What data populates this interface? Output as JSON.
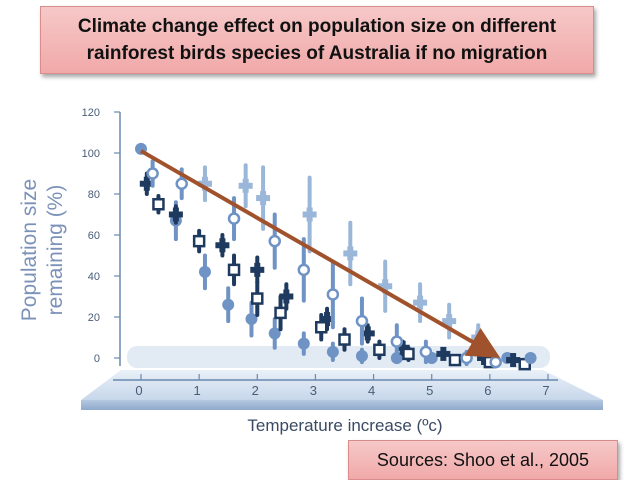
{
  "title": {
    "line1": "Climate change effect on population size on different",
    "line2": "rainforest birds species of Australia if no migration"
  },
  "source": "Sources: Shoo et al., 2005",
  "colors": {
    "dark": "#1f3a5f",
    "mid": "#6f93c4",
    "light": "#9ab6d9",
    "trend": "#a0522d",
    "axis": "#6a88b0"
  },
  "chart_data": {
    "type": "scatter",
    "xlabel": "Temperature increase (ºc)",
    "ylabel": [
      "Population size",
      "remaining (%)"
    ],
    "xlim": [
      0,
      7
    ],
    "ylim": [
      0,
      120
    ],
    "xticks": [
      0,
      1,
      2,
      3,
      4,
      5,
      6,
      7
    ],
    "yticks": [
      0,
      20,
      40,
      60,
      80,
      100,
      120
    ],
    "series": [
      {
        "name": "filled-circle",
        "marker": "circle",
        "shade": "mid",
        "points": [
          [
            0.6,
            67,
            9
          ],
          [
            1.1,
            42,
            8
          ],
          [
            1.5,
            26,
            8
          ],
          [
            1.9,
            19,
            8
          ],
          [
            2.3,
            12,
            7
          ],
          [
            2.8,
            7,
            5
          ],
          [
            3.3,
            3,
            4
          ],
          [
            3.8,
            1,
            3
          ],
          [
            4.4,
            0,
            2
          ],
          [
            5.0,
            0,
            2
          ],
          [
            5.6,
            0,
            1
          ],
          [
            6.3,
            0,
            1
          ]
        ]
      },
      {
        "name": "filled-cross",
        "marker": "cross",
        "shade": "dark",
        "points": [
          [
            0.1,
            85,
            5
          ],
          [
            0.6,
            70,
            4
          ],
          [
            1.4,
            55,
            5
          ],
          [
            2.0,
            43,
            6
          ],
          [
            2.5,
            30,
            6
          ],
          [
            3.2,
            19,
            5
          ],
          [
            3.9,
            12,
            4
          ],
          [
            4.5,
            5,
            3
          ],
          [
            5.2,
            2,
            2
          ],
          [
            5.9,
            0,
            1
          ],
          [
            6.4,
            -1,
            1
          ]
        ]
      },
      {
        "name": "open-square",
        "marker": "square",
        "shade": "dark",
        "points": [
          [
            0.3,
            75,
            4
          ],
          [
            1.0,
            57,
            5
          ],
          [
            1.6,
            43,
            7
          ],
          [
            2.0,
            29,
            8
          ],
          [
            2.4,
            22,
            8
          ],
          [
            3.1,
            15,
            6
          ],
          [
            3.5,
            9,
            5
          ],
          [
            4.1,
            4,
            4
          ],
          [
            4.6,
            2,
            3
          ],
          [
            5.4,
            -1,
            2
          ],
          [
            6.0,
            -2,
            1
          ],
          [
            6.6,
            -3,
            1
          ]
        ]
      },
      {
        "name": "open-circle",
        "marker": "ocircle",
        "shade": "mid",
        "points": [
          [
            0.2,
            90,
            6
          ],
          [
            0.7,
            85,
            7
          ],
          [
            1.6,
            68,
            10
          ],
          [
            2.3,
            57,
            13
          ],
          [
            2.8,
            43,
            15
          ],
          [
            3.3,
            31,
            16
          ],
          [
            3.8,
            18,
            11
          ],
          [
            4.4,
            8,
            8
          ],
          [
            4.9,
            3,
            5
          ],
          [
            5.6,
            0,
            3
          ],
          [
            6.1,
            -2,
            2
          ]
        ]
      },
      {
        "name": "light-cross",
        "marker": "cross",
        "shade": "light",
        "points": [
          [
            1.1,
            85,
            8
          ],
          [
            1.8,
            84,
            10
          ],
          [
            2.1,
            78,
            15
          ],
          [
            2.9,
            70,
            18
          ],
          [
            3.6,
            51,
            15
          ],
          [
            4.2,
            35,
            12
          ],
          [
            4.8,
            27,
            9
          ],
          [
            5.3,
            18,
            8
          ],
          [
            5.8,
            10,
            6
          ]
        ]
      },
      {
        "name": "baseline-circle",
        "marker": "circle",
        "shade": "mid",
        "points": [
          [
            0,
            102,
            0
          ],
          [
            6.7,
            0,
            0
          ]
        ]
      }
    ],
    "trend_line": {
      "from": [
        0,
        101
      ],
      "to": [
        6,
        3
      ]
    }
  }
}
